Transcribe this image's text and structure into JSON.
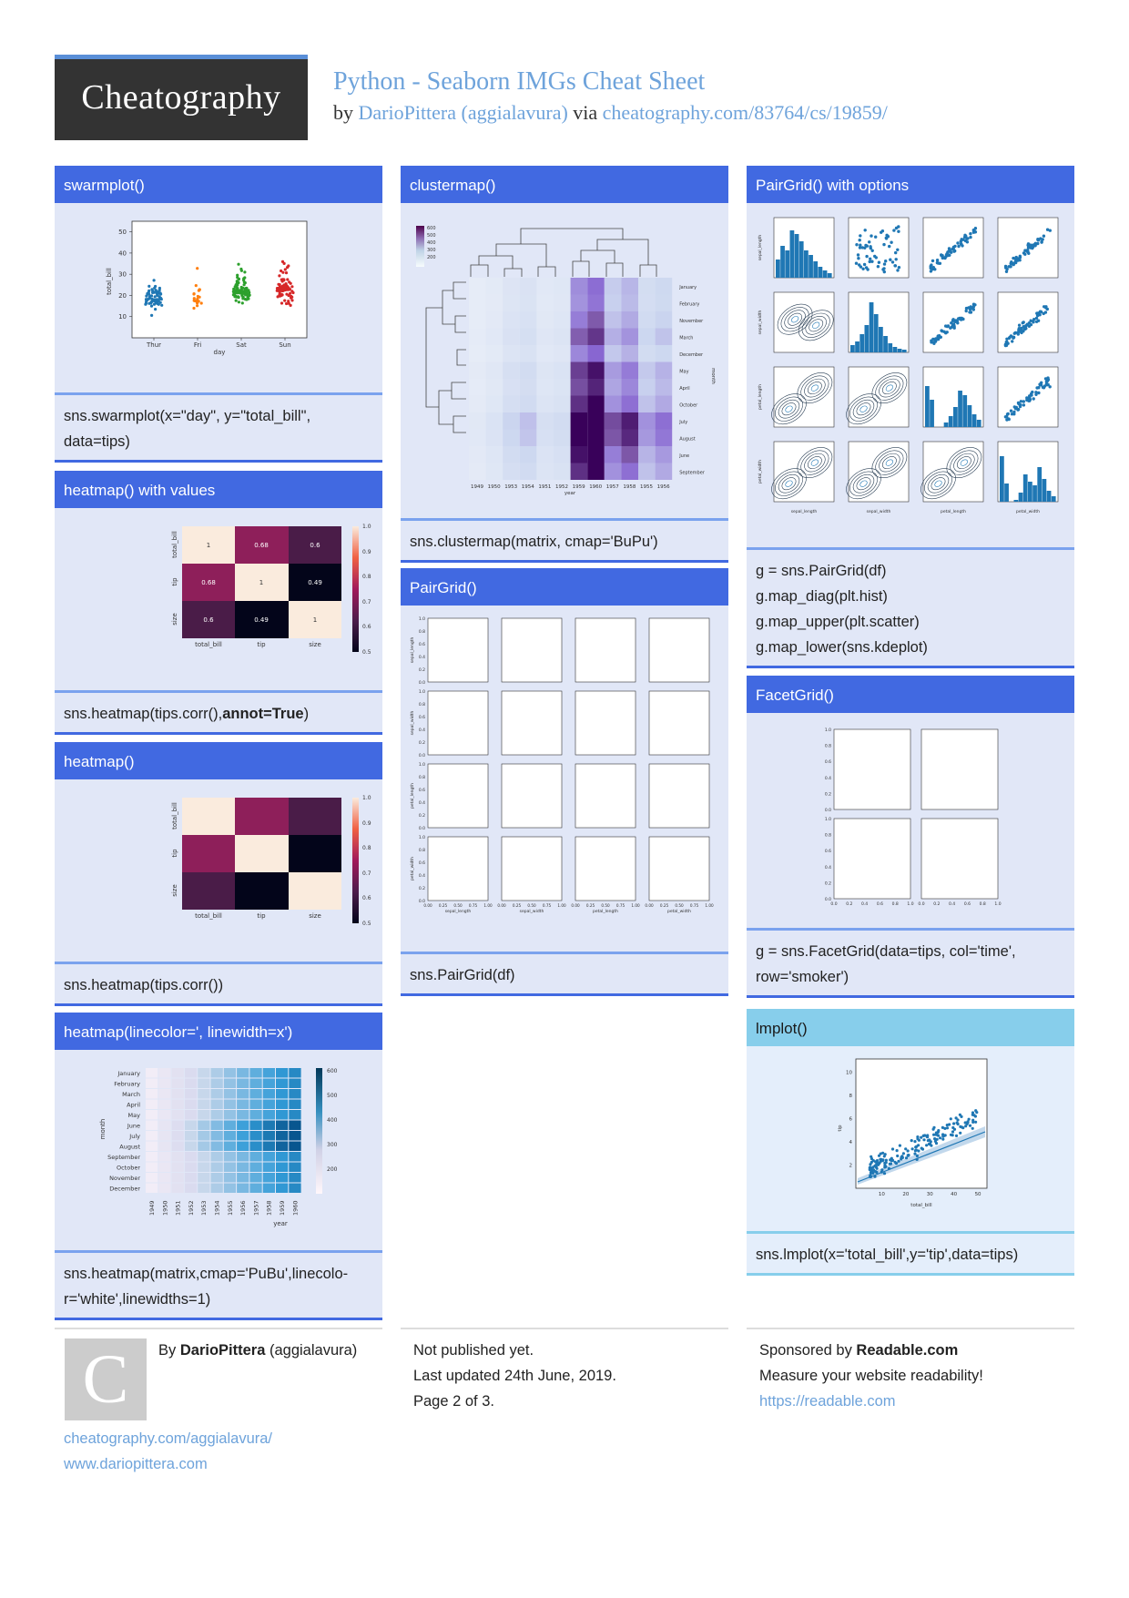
{
  "logo": {
    "text": "Cheatography"
  },
  "sheet": {
    "title": "Python - Seaborn IMGs Cheat Sheet",
    "by": "by",
    "author_link": "DarioPittera (aggialavura)",
    "via": "via",
    "url": "cheatography.com/83764/cs/19859/"
  },
  "colors": {
    "header": "#4169e1",
    "header_light": "#87ceeb",
    "panel": "#e1e7f7",
    "link": "#6ea3db",
    "logo_bg": "#333333"
  },
  "sections": {
    "swarmplot": {
      "title": "swarmplot()",
      "code_lines": [
        "sns.swarmplot(x=\"day\", y=\"total_bill\",",
        "data=tips)"
      ],
      "chart": {
        "ylabel": "total_bill",
        "xlabel": "day",
        "yticks": [
          "50",
          "40",
          "30",
          "20",
          "10"
        ],
        "categories": [
          "Thur",
          "Fri",
          "Sat",
          "Sun"
        ]
      }
    },
    "heatmap_values": {
      "title": "heatmap() with values",
      "code_prefix": "sns.heatmap(tips.corr(),",
      "code_bold": "annot=True",
      "code_suffix": ")",
      "chart": {
        "row_labels": [
          "total_bill",
          "tip",
          "size"
        ],
        "col_labels": [
          "total_bill",
          "tip",
          "size"
        ],
        "values": [
          [
            "1",
            "0.68",
            "0.6"
          ],
          [
            "0.68",
            "1",
            "0.49"
          ],
          [
            "0.6",
            "0.49",
            "1"
          ]
        ],
        "colorbar_ticks": [
          "1.0",
          "0.9",
          "0.8",
          "0.7",
          "0.6",
          "0.5"
        ]
      }
    },
    "heatmap": {
      "title": "heatmap()",
      "code": "sns.heatmap(tips.corr())",
      "chart": {
        "row_labels": [
          "total_bill",
          "tip",
          "size"
        ],
        "col_labels": [
          "total_bill",
          "tip",
          "size"
        ],
        "colorbar_ticks": [
          "1.0",
          "0.9",
          "0.8",
          "0.7",
          "0.6",
          "0.5"
        ]
      }
    },
    "heatmap_line": {
      "title": "heatmap(linecolor=', linewidth=x')",
      "code_lines": [
        "sns.heatmap(matrix,cmap='PuBu',lineco­lo-",
        "r='white',linewidths=1)"
      ],
      "chart": {
        "ylabel": "month",
        "xlabel": "year",
        "months": [
          "January",
          "February",
          "March",
          "April",
          "May",
          "June",
          "July",
          "August",
          "September",
          "October",
          "November",
          "December"
        ],
        "years": [
          "1949",
          "1950",
          "1951",
          "1952",
          "1953",
          "1954",
          "1955",
          "1956",
          "1957",
          "1958",
          "1959",
          "1960"
        ],
        "colorbar_ticks": [
          "600",
          "500",
          "400",
          "300",
          "200"
        ]
      }
    },
    "clustermap": {
      "title": "clustermap()",
      "code": "sns.clustermap(matrix, cmap='BuPu')",
      "chart": {
        "ylabel": "month",
        "xlabel": "year",
        "months": [
          "January",
          "February",
          "November",
          "March",
          "December",
          "May",
          "April",
          "October",
          "July",
          "August",
          "June",
          "September"
        ],
        "years": [
          "1949",
          "1950",
          "1953",
          "1954",
          "1951",
          "1952",
          "1959",
          "1960",
          "1957",
          "1958",
          "1955",
          "1956"
        ],
        "colorbar_ticks": [
          "600",
          "500",
          "400",
          "300",
          "200"
        ]
      }
    },
    "pairgrid": {
      "title": "PairGrid()",
      "code": "sns.PairGrid(df)",
      "chart": {
        "row_labels": [
          "sepal_length",
          "sepal_width",
          "petal_length",
          "petal_width"
        ],
        "col_labels": [
          "sepal_length",
          "sepal_width",
          "petal_length",
          "petal_width"
        ],
        "yticks": [
          "1.0",
          "0.8",
          "0.6",
          "0.4",
          "0.2",
          "0.0"
        ],
        "xticks": [
          "0.00",
          "0.25",
          "0.50",
          "0.75",
          "1.00"
        ]
      }
    },
    "pairgrid_options": {
      "title": "PairGrid() with options",
      "code_lines": [
        "g = sns.PairGrid(df)",
        "g.map_diag(plt.hist)",
        "g.map_upper(plt.scatter)",
        "g.map_lower(sns.kdeplot)"
      ],
      "chart": {
        "row_labels": [
          "sepal_length",
          "sepal_width",
          "petal_length",
          "petal_width"
        ],
        "col_labels": [
          "sepal_length",
          "sepal_width",
          "petal_length",
          "petal_width"
        ]
      }
    },
    "facetgrid": {
      "title": "FacetGrid()",
      "code_lines": [
        "g = sns.FacetGrid(data=tips, col='time',",
        "row='smoker')"
      ],
      "chart": {
        "yticks": [
          "1.0",
          "0.8",
          "0.6",
          "0.4",
          "0.2",
          "0.0"
        ],
        "xticks": [
          "0.0",
          "0.2",
          "0.4",
          "0.6",
          "0.8",
          "1.0"
        ]
      }
    },
    "lmplot": {
      "title": "lmplot()",
      "code": "sns.lmplot(x='total_bill',y='tip',data=tips)",
      "chart": {
        "ylabel": "tip",
        "xlabel": "total_bill",
        "yticks": [
          "10",
          "8",
          "6",
          "4",
          "2"
        ],
        "xticks": [
          "10",
          "20",
          "30",
          "40",
          "50"
        ]
      }
    }
  },
  "footer": {
    "by": "By",
    "author_bold": "DarioPittera",
    "author_rest": "(aggialavura)",
    "avatar_letter": "C",
    "link1": "cheatography.com/aggialavura/",
    "link2": "www.dariopittera.com",
    "published": "Not published yet.",
    "updated": "Last updated 24th June, 2019.",
    "page": "Page 2 of 3.",
    "sponsored_prefix": "Sponsored by",
    "sponsor": "Readable.com",
    "tagline": "Measure your website readability!",
    "sponsor_link": "https://readable.com"
  }
}
